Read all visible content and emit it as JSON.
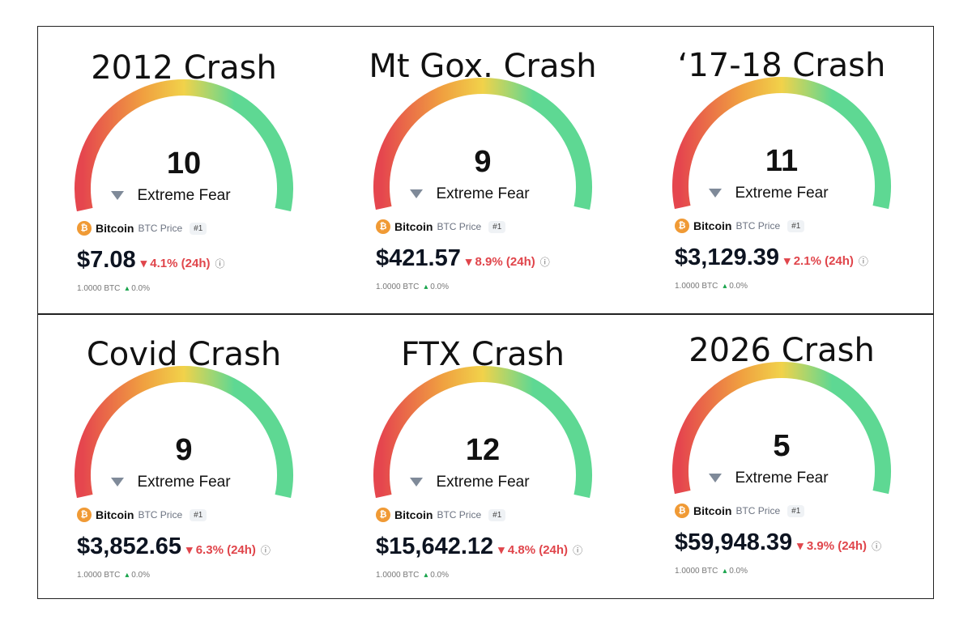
{
  "colors": {
    "red": "#e5464e",
    "orange": "#f0a040",
    "yellow": "#f1d24a",
    "green": "#5ed893",
    "down": "#e0454b",
    "up": "#16a34a",
    "coin": "#f09a35"
  },
  "panels": [
    {
      "title": "2012 Crash",
      "value": "10",
      "label": "Extreme Fear",
      "coin": "Bitcoin",
      "symbol": "BTC Price",
      "rank": "#1",
      "price": "$7.08",
      "change": "4.1% (24h)",
      "amount": "1.0000 BTC",
      "amount_change": "0.0%"
    },
    {
      "title": "Mt Gox. Crash",
      "value": "9",
      "label": "Extreme Fear",
      "coin": "Bitcoin",
      "symbol": "BTC Price",
      "rank": "#1",
      "price": "$421.57",
      "change": "8.9% (24h)",
      "amount": "1.0000 BTC",
      "amount_change": "0.0%"
    },
    {
      "title": "‘17-18 Crash",
      "value": "11",
      "label": "Extreme Fear",
      "coin": "Bitcoin",
      "symbol": "BTC Price",
      "rank": "#1",
      "price": "$3,129.39",
      "change": "2.1% (24h)",
      "amount": "1.0000 BTC",
      "amount_change": "0.0%"
    },
    {
      "title": "Covid Crash",
      "value": "9",
      "label": "Extreme Fear",
      "coin": "Bitcoin",
      "symbol": "BTC Price",
      "rank": "#1",
      "price": "$3,852.65",
      "change": "6.3% (24h)",
      "amount": "1.0000 BTC",
      "amount_change": "0.0%"
    },
    {
      "title": "FTX Crash",
      "value": "12",
      "label": "Extreme Fear",
      "coin": "Bitcoin",
      "symbol": "BTC Price",
      "rank": "#1",
      "price": "$15,642.12",
      "change": "4.8% (24h)",
      "amount": "1.0000 BTC",
      "amount_change": "0.0%"
    },
    {
      "title": "2026 Crash",
      "value": "5",
      "label": "Extreme Fear",
      "coin": "Bitcoin",
      "symbol": "BTC Price",
      "rank": "#1",
      "price": "$59,948.39",
      "change": "3.9% (24h)",
      "amount": "1.0000 BTC",
      "amount_change": "0.0%"
    }
  ]
}
